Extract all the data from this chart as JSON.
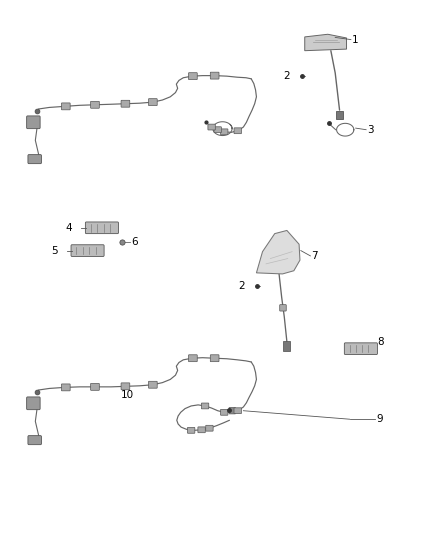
{
  "bg_color": "#ffffff",
  "fig_width": 4.38,
  "fig_height": 5.33,
  "dpi": 100,
  "line_color": "#666666",
  "label_color": "#000000",
  "label_fontsize": 7.5
}
